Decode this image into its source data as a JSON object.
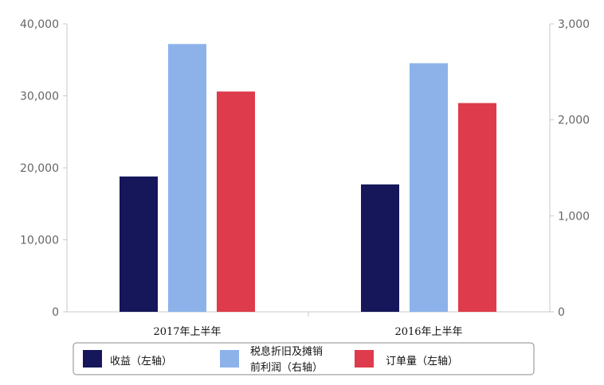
{
  "chart_data": {
    "type": "bar",
    "categories": [
      "2017年上半年",
      "2016年上半年"
    ],
    "series": [
      {
        "name": "收益（左轴）",
        "axis": "left",
        "color": "#15175a",
        "values": [
          18800,
          17700
        ]
      },
      {
        "name": "税息折旧及摊销前利润（右轴）",
        "axis": "right",
        "color": "#8db2ea",
        "values": [
          2790,
          2590
        ]
      },
      {
        "name": "订单量（左轴）",
        "axis": "left",
        "color": "#de3b4c",
        "values": [
          30600,
          29000
        ]
      }
    ],
    "y_left": {
      "min": 0,
      "max": 40000,
      "ticks": [
        "0",
        "10,000",
        "20,000",
        "30,000",
        "40,000"
      ]
    },
    "y_right": {
      "min": 0,
      "max": 3000,
      "ticks": [
        "0",
        "1,000",
        "2,000",
        "3,000"
      ]
    },
    "legend": {
      "position": "bottom",
      "items": [
        {
          "lines": [
            "收益（左轴）"
          ]
        },
        {
          "lines": [
            "税息折旧及摊销",
            "前利润（右轴）"
          ]
        },
        {
          "lines": [
            "订单量（左轴）"
          ]
        }
      ]
    },
    "grid": false
  }
}
